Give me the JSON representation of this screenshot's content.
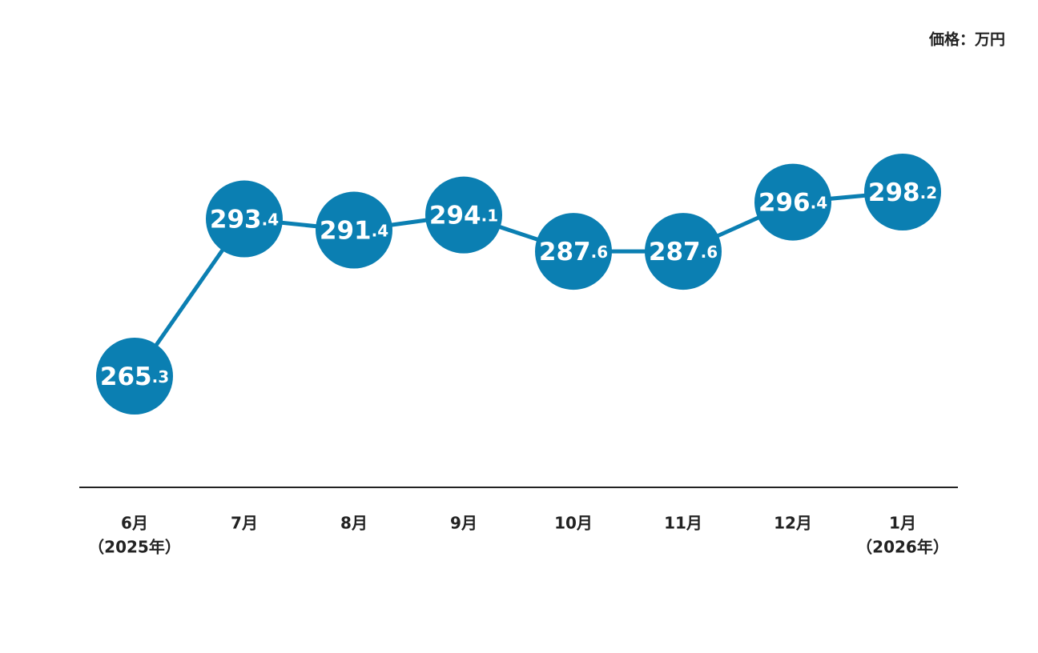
{
  "unit_label": "価格：万円",
  "chart_data": {
    "type": "line",
    "categories": [
      "6月",
      "7月",
      "8月",
      "9月",
      "10月",
      "11月",
      "12月",
      "1月"
    ],
    "year_labels": [
      "（2025年）",
      null,
      null,
      null,
      null,
      null,
      null,
      "（2026年）"
    ],
    "values": [
      265.3,
      293.4,
      291.4,
      294.1,
      287.6,
      287.6,
      296.4,
      298.2
    ],
    "color": "#0b7fb2"
  }
}
